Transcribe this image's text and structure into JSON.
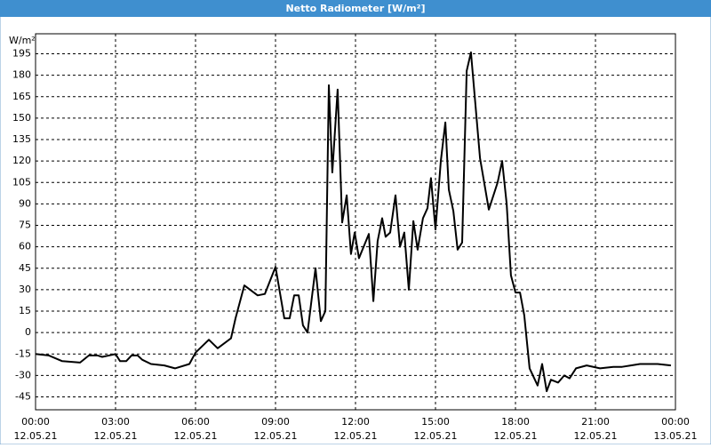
{
  "chart_data": {
    "type": "line",
    "title": "Netto Radiometer [W/m²]",
    "y_unit": "W/m²",
    "color": "#000000",
    "grid": true,
    "xlim": [
      0,
      24
    ],
    "ylim": [
      -54,
      209
    ],
    "yticks": [
      -45,
      -30,
      -15,
      0,
      15,
      30,
      45,
      60,
      75,
      90,
      105,
      120,
      135,
      150,
      165,
      180,
      195
    ],
    "xticks": [
      {
        "value": 0,
        "label": "00:00"
      },
      {
        "value": 3,
        "label": "03:00"
      },
      {
        "value": 6,
        "label": "06:00"
      },
      {
        "value": 9,
        "label": "09:00"
      },
      {
        "value": 12,
        "label": "12:00"
      },
      {
        "value": 15,
        "label": "15:00"
      },
      {
        "value": 18,
        "label": "18:00"
      },
      {
        "value": 21,
        "label": "21:00"
      },
      {
        "value": 24,
        "label": "00:00"
      }
    ],
    "xtick_dates": [
      "12.05.21",
      "12.05.21",
      "12.05.21",
      "12.05.21",
      "12.05.21",
      "12.05.21",
      "12.05.21",
      "12.05.21",
      "13.05.21"
    ],
    "x": [
      0,
      0.5,
      1.0,
      1.67,
      2.0,
      2.33,
      2.5,
      3.0,
      3.17,
      3.4,
      3.6,
      3.83,
      4.0,
      4.33,
      4.83,
      5.23,
      5.77,
      6.0,
      6.5,
      6.83,
      7.33,
      7.5,
      7.83,
      8.33,
      8.6,
      9.0,
      9.33,
      9.53,
      9.7,
      9.87,
      10.03,
      10.2,
      10.5,
      10.7,
      10.87,
      11.0,
      11.13,
      11.33,
      11.5,
      11.67,
      11.83,
      11.97,
      12.13,
      12.5,
      12.67,
      12.83,
      13.0,
      13.13,
      13.3,
      13.5,
      13.67,
      13.83,
      14.0,
      14.17,
      14.33,
      14.53,
      14.7,
      14.83,
      15.0,
      15.2,
      15.37,
      15.5,
      15.67,
      15.83,
      16.0,
      16.17,
      16.33,
      16.67,
      17.0,
      17.33,
      17.5,
      17.67,
      17.83,
      18.0,
      18.17,
      18.33,
      18.53,
      18.83,
      19.0,
      19.17,
      19.33,
      19.6,
      19.83,
      20.03,
      20.27,
      20.67,
      21.17,
      21.67,
      22.0,
      22.33,
      22.67,
      23.33,
      23.83
    ],
    "values": [
      -15,
      -16,
      -20,
      -21,
      -16,
      -16,
      -17,
      -15,
      -20,
      -20,
      -16,
      -16,
      -19,
      -22,
      -23,
      -25,
      -22,
      -14,
      -5,
      -11,
      -4,
      10,
      33,
      26,
      27,
      46,
      10,
      10,
      26,
      26,
      5,
      0,
      45,
      8,
      15,
      173,
      112,
      170,
      77,
      96,
      55,
      70,
      52,
      69,
      22,
      64,
      80,
      67,
      70,
      96,
      60,
      70,
      30,
      78,
      58,
      80,
      87,
      108,
      72,
      120,
      147,
      100,
      85,
      58,
      63,
      183,
      196,
      122,
      86,
      105,
      120,
      90,
      40,
      28,
      28,
      12,
      -25,
      -37,
      -22,
      -41,
      -33,
      -35,
      -30,
      -32,
      -25,
      -23,
      -25,
      -24,
      -24,
      -23,
      -22,
      -22,
      -23
    ]
  }
}
